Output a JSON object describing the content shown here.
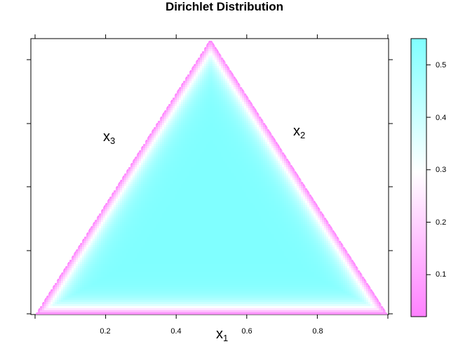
{
  "chart_data": {
    "type": "heatmap",
    "title": "Dirichlet Distribution",
    "xlim": [
      0,
      1
    ],
    "x_ticks": [
      0.2,
      0.4,
      0.6,
      0.8
    ],
    "x_tick_labels": [
      "0.2",
      "0.4",
      "0.6",
      "0.8"
    ],
    "vertex_labels": [
      {
        "name": "x",
        "sub": "1",
        "at": "bottom-center"
      },
      {
        "name": "x",
        "sub": "2",
        "at": "right-side"
      },
      {
        "name": "x",
        "sub": "3",
        "at": "left-side"
      }
    ],
    "density": {
      "max": 0.55,
      "min": 0.02,
      "shape": "plateau in interior, falls off toward simplex edges"
    },
    "colorbar": {
      "range": [
        0.02,
        0.55
      ],
      "ticks": [
        0.1,
        0.2,
        0.3,
        0.4,
        0.5
      ],
      "tick_labels": [
        "0.1",
        "0.2",
        "0.3",
        "0.4",
        "0.5"
      ],
      "low_color": "#ff80ff",
      "mid_color": "#ffffff",
      "high_color": "#80ffff",
      "midpoint": 0.3
    },
    "grid": false
  },
  "colors": {
    "frame": "#000000",
    "background": "#ffffff"
  }
}
